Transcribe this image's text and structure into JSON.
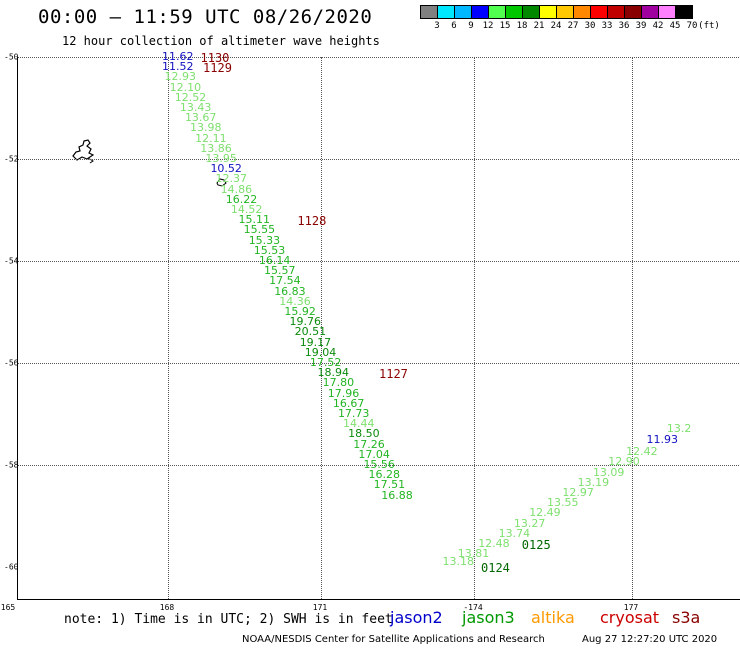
{
  "title": "00:00 — 11:59 UTC 08/26/2020",
  "subtitle": "12 hour collection of altimeter wave heights",
  "scale": {
    "labels": [
      "3",
      "6",
      "9",
      "12",
      "15",
      "18",
      "21",
      "24",
      "27",
      "30",
      "33",
      "36",
      "39",
      "42",
      "45",
      "70",
      "(ft)"
    ],
    "colors": [
      "#808080",
      "#00e8ff",
      "#00b8ff",
      "#0000ff",
      "#50ff50",
      "#00c800",
      "#008800",
      "#ffff00",
      "#ffc800",
      "#ff8800",
      "#ff0000",
      "#c00000",
      "#880000",
      "#a000a0",
      "#ff80ff",
      "#000000"
    ]
  },
  "axes": {
    "y": [
      {
        "label": "-50",
        "v": -50
      },
      {
        "label": "-52",
        "v": -52
      },
      {
        "label": "-54",
        "v": -54
      },
      {
        "label": "-56",
        "v": -56
      },
      {
        "label": "-58",
        "v": -58
      },
      {
        "label": "-60",
        "v": -60
      }
    ],
    "x": [
      {
        "label": "165",
        "v": 165
      },
      {
        "label": "168",
        "v": 168
      },
      {
        "label": "171",
        "v": 171
      },
      {
        "label": "-174",
        "v": 186
      },
      {
        "label": "177",
        "v": 177
      }
    ]
  },
  "observations": [
    {
      "text": "11.62",
      "lon": 168.0,
      "lat": -50.0,
      "cls": "c-blue"
    },
    {
      "text": "11.52",
      "lon": 168.0,
      "lat": -50.2,
      "cls": "c-blue"
    },
    {
      "text": "12.93",
      "lon": 168.05,
      "lat": -50.4,
      "cls": "c-light"
    },
    {
      "text": "12.10",
      "lon": 168.15,
      "lat": -50.6,
      "cls": "c-light"
    },
    {
      "text": "12.52",
      "lon": 168.25,
      "lat": -50.8,
      "cls": "c-light"
    },
    {
      "text": "13.43",
      "lon": 168.35,
      "lat": -51.0,
      "cls": "c-light"
    },
    {
      "text": "13.67",
      "lon": 168.45,
      "lat": -51.2,
      "cls": "c-light"
    },
    {
      "text": "13.98",
      "lon": 168.55,
      "lat": -51.4,
      "cls": "c-light"
    },
    {
      "text": "12.11",
      "lon": 168.65,
      "lat": -51.6,
      "cls": "c-light"
    },
    {
      "text": "13.86",
      "lon": 168.75,
      "lat": -51.8,
      "cls": "c-light"
    },
    {
      "text": "13.95",
      "lon": 168.85,
      "lat": -52.0,
      "cls": "c-light"
    },
    {
      "text": "10.52",
      "lon": 168.95,
      "lat": -52.2,
      "cls": "c-blue"
    },
    {
      "text": "12.37",
      "lon": 169.05,
      "lat": -52.4,
      "cls": "c-light"
    },
    {
      "text": "14.86",
      "lon": 169.15,
      "lat": -52.6,
      "cls": "c-light"
    },
    {
      "text": "16.22",
      "lon": 169.25,
      "lat": -52.8,
      "cls": "c-mid"
    },
    {
      "text": "14.52",
      "lon": 169.35,
      "lat": -53.0,
      "cls": "c-light"
    },
    {
      "text": "15.11",
      "lon": 169.5,
      "lat": -53.2,
      "cls": "c-mid"
    },
    {
      "text": "15.55",
      "lon": 169.6,
      "lat": -53.4,
      "cls": "c-mid"
    },
    {
      "text": "15.33",
      "lon": 169.7,
      "lat": -53.6,
      "cls": "c-mid"
    },
    {
      "text": "15.53",
      "lon": 169.8,
      "lat": -53.8,
      "cls": "c-mid"
    },
    {
      "text": "16.14",
      "lon": 169.9,
      "lat": -54.0,
      "cls": "c-mid"
    },
    {
      "text": "15.57",
      "lon": 170.0,
      "lat": -54.2,
      "cls": "c-mid"
    },
    {
      "text": "17.54",
      "lon": 170.1,
      "lat": -54.4,
      "cls": "c-mid"
    },
    {
      "text": "16.83",
      "lon": 170.2,
      "lat": -54.6,
      "cls": "c-mid"
    },
    {
      "text": "14.36",
      "lon": 170.3,
      "lat": -54.8,
      "cls": "c-light"
    },
    {
      "text": "15.92",
      "lon": 170.4,
      "lat": -55.0,
      "cls": "c-mid"
    },
    {
      "text": "19.76",
      "lon": 170.5,
      "lat": -55.2,
      "cls": "c-dark"
    },
    {
      "text": "20.51",
      "lon": 170.6,
      "lat": -55.4,
      "cls": "c-dark"
    },
    {
      "text": "19.17",
      "lon": 170.7,
      "lat": -55.6,
      "cls": "c-dark"
    },
    {
      "text": "19.04",
      "lon": 170.8,
      "lat": -55.8,
      "cls": "c-dark"
    },
    {
      "text": "17.52",
      "lon": 170.9,
      "lat": -56.0,
      "cls": "c-mid"
    },
    {
      "text": "18.94",
      "lon": 171.05,
      "lat": -56.2,
      "cls": "c-dark"
    },
    {
      "text": "17.80",
      "lon": 171.15,
      "lat": -56.4,
      "cls": "c-mid"
    },
    {
      "text": "17.96",
      "lon": 171.25,
      "lat": -56.6,
      "cls": "c-mid"
    },
    {
      "text": "16.67",
      "lon": 171.35,
      "lat": -56.8,
      "cls": "c-mid"
    },
    {
      "text": "17.73",
      "lon": 171.45,
      "lat": -57.0,
      "cls": "c-mid"
    },
    {
      "text": "14.44",
      "lon": 171.55,
      "lat": -57.2,
      "cls": "c-light"
    },
    {
      "text": "18.50",
      "lon": 171.65,
      "lat": -57.4,
      "cls": "c-dark"
    },
    {
      "text": "17.26",
      "lon": 171.75,
      "lat": -57.6,
      "cls": "c-mid"
    },
    {
      "text": "17.04",
      "lon": 171.85,
      "lat": -57.8,
      "cls": "c-mid"
    },
    {
      "text": "15.56",
      "lon": 171.95,
      "lat": -58.0,
      "cls": "c-mid"
    },
    {
      "text": "16.28",
      "lon": 172.05,
      "lat": -58.2,
      "cls": "c-mid"
    },
    {
      "text": "17.51",
      "lon": 172.15,
      "lat": -58.4,
      "cls": "c-mid"
    },
    {
      "text": "16.88",
      "lon": 172.3,
      "lat": -58.6,
      "cls": "c-mid"
    },
    {
      "text": "13.18",
      "lon": 173.5,
      "lat": -59.9,
      "cls": "c-light"
    },
    {
      "text": "13.81",
      "lon": 173.8,
      "lat": -59.75,
      "cls": "c-light"
    },
    {
      "text": "12.48",
      "lon": 174.2,
      "lat": -59.55,
      "cls": "c-light"
    },
    {
      "text": "13.74",
      "lon": 174.6,
      "lat": -59.35,
      "cls": "c-light"
    },
    {
      "text": "13.27",
      "lon": 174.9,
      "lat": -59.15,
      "cls": "c-light"
    },
    {
      "text": "12.49",
      "lon": 175.2,
      "lat": -58.95,
      "cls": "c-light"
    },
    {
      "text": "13.55",
      "lon": 175.55,
      "lat": -58.75,
      "cls": "c-light"
    },
    {
      "text": "12.97",
      "lon": 175.85,
      "lat": -58.55,
      "cls": "c-light"
    },
    {
      "text": "13.19",
      "lon": 176.15,
      "lat": -58.35,
      "cls": "c-light"
    },
    {
      "text": "13.09",
      "lon": 176.45,
      "lat": -58.15,
      "cls": "c-light"
    },
    {
      "text": "12.90",
      "lon": 176.75,
      "lat": -57.95,
      "cls": "c-light"
    },
    {
      "text": "12.42",
      "lon": 177.1,
      "lat": -57.75,
      "cls": "c-light"
    },
    {
      "text": "11.93",
      "lon": 177.5,
      "lat": -57.5,
      "cls": "c-blue"
    },
    {
      "text": "13.2",
      "lon": 177.9,
      "lat": -57.3,
      "cls": "c-light"
    }
  ],
  "timestamps": [
    {
      "text": "1130",
      "lon": 168.5,
      "lat": -50.0,
      "cls": "t-red"
    },
    {
      "text": "1129",
      "lon": 168.55,
      "lat": -50.2,
      "cls": "t-red"
    },
    {
      "text": "1128",
      "lon": 170.4,
      "lat": -53.2,
      "cls": "t-red"
    },
    {
      "text": "1127",
      "lon": 172.0,
      "lat": -56.2,
      "cls": "t-red"
    },
    {
      "text": "0125",
      "lon": 174.8,
      "lat": -59.55,
      "cls": "t-green"
    },
    {
      "text": "0124",
      "lon": 174.0,
      "lat": -60.0,
      "cls": "t-green"
    }
  ],
  "note": "note: 1) Time is in UTC; 2) SWH is in feet",
  "satellites": [
    {
      "name": "jason2",
      "color": "#0000cc"
    },
    {
      "name": "jason3",
      "color": "#009900"
    },
    {
      "name": "altika",
      "color": "#ff9900"
    },
    {
      "name": "cryosat",
      "color": "#cc0000"
    },
    {
      "name": "s3a",
      "color": "#8a0000"
    }
  ],
  "footer_left": "NOAA/NESDIS Center for Satellite Applications and Research",
  "footer_right": "Aug 27 12:27:20 UTC 2020"
}
